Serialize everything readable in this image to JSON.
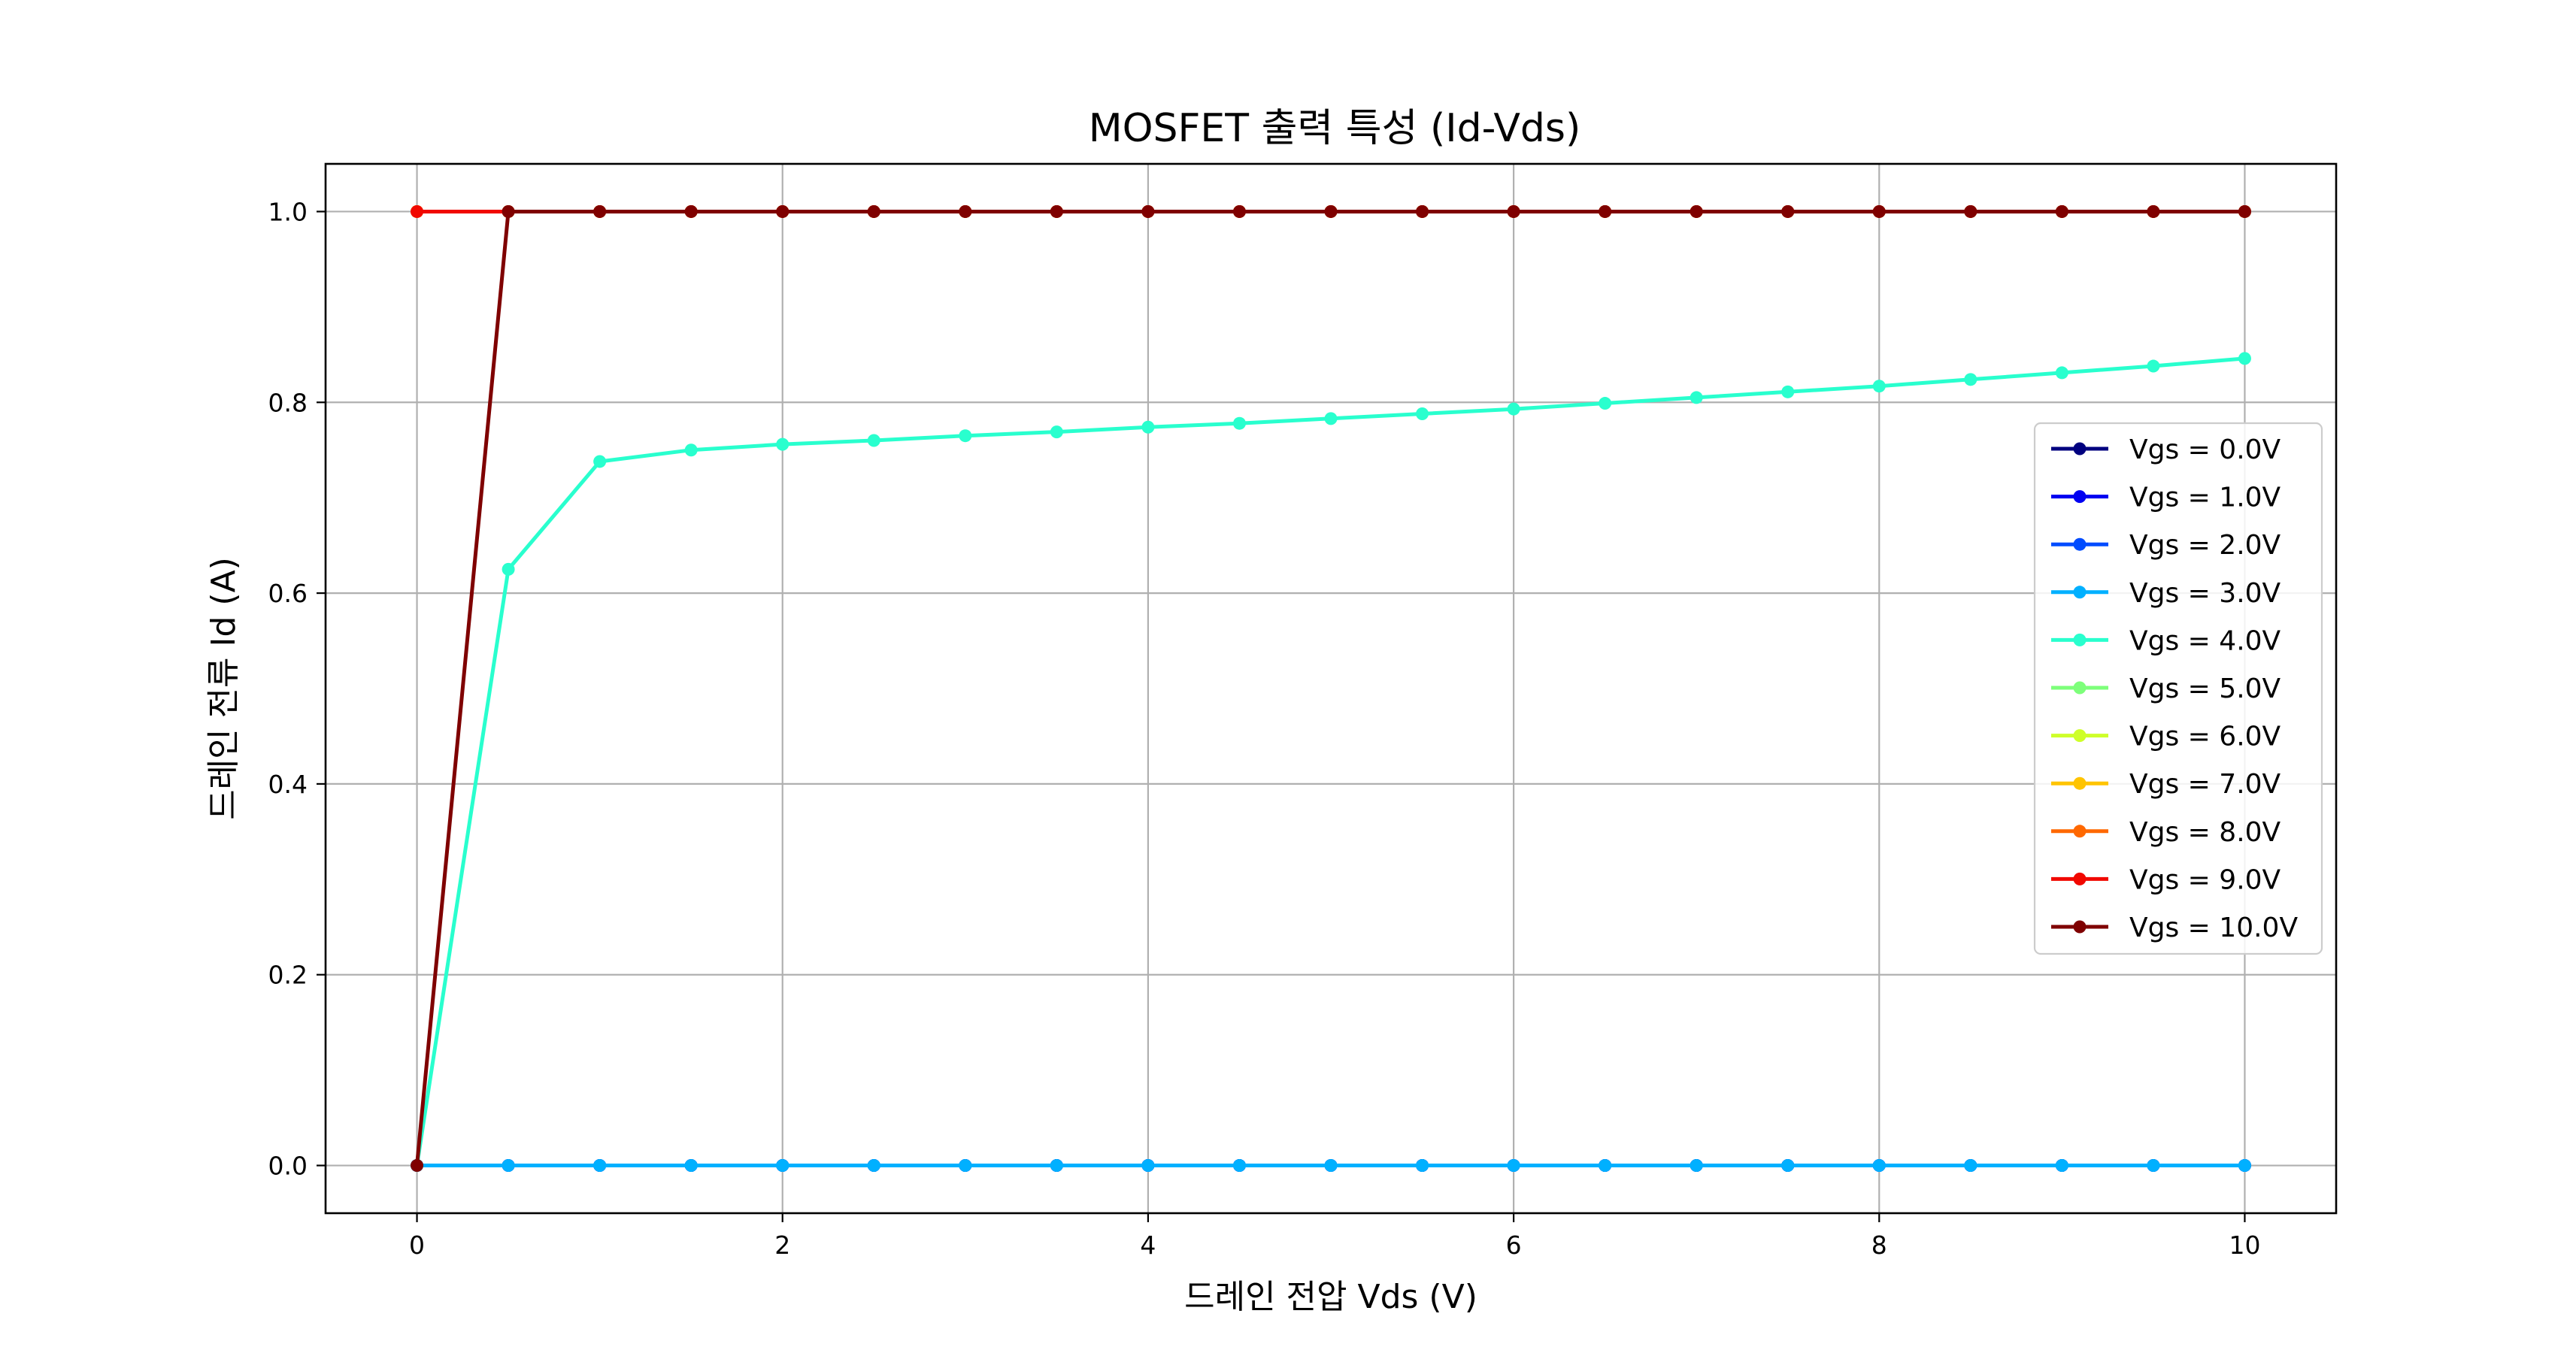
{
  "chart_data": {
    "type": "line",
    "title": "MOSFET 출력 특성 (Id-Vds)",
    "xlabel": "드레인 전압 Vds (V)",
    "ylabel": "드레인 전류 Id (A)",
    "xlim": [
      -0.5,
      10.5
    ],
    "ylim": [
      -0.05,
      1.05
    ],
    "xticks": [
      0,
      2,
      4,
      6,
      8,
      10
    ],
    "xtick_labels": [
      "0",
      "2",
      "4",
      "6",
      "8",
      "10"
    ],
    "yticks": [
      0.0,
      0.2,
      0.4,
      0.6,
      0.8,
      1.0
    ],
    "ytick_labels": [
      "0.0",
      "0.2",
      "0.4",
      "0.6",
      "0.8",
      "1.0"
    ],
    "grid": true,
    "legend_position": "right",
    "x": [
      0,
      0.5,
      1,
      1.5,
      2,
      2.5,
      3,
      3.5,
      4,
      4.5,
      5,
      5.5,
      6,
      6.5,
      7,
      7.5,
      8,
      8.5,
      9,
      9.5,
      10
    ],
    "series": [
      {
        "name": "Vgs = 0.0V",
        "color": "#00007f",
        "values": [
          0,
          0,
          0,
          0,
          0,
          0,
          0,
          0,
          0,
          0,
          0,
          0,
          0,
          0,
          0,
          0,
          0,
          0,
          0,
          0,
          0
        ]
      },
      {
        "name": "Vgs = 1.0V",
        "color": "#0000f1",
        "values": [
          0,
          0,
          0,
          0,
          0,
          0,
          0,
          0,
          0,
          0,
          0,
          0,
          0,
          0,
          0,
          0,
          0,
          0,
          0,
          0,
          0
        ]
      },
      {
        "name": "Vgs = 2.0V",
        "color": "#004cff",
        "values": [
          0,
          0,
          0,
          0,
          0,
          0,
          0,
          0,
          0,
          0,
          0,
          0,
          0,
          0,
          0,
          0,
          0,
          0,
          0,
          0,
          0
        ]
      },
      {
        "name": "Vgs = 3.0V",
        "color": "#00b0ff",
        "values": [
          0,
          0,
          0,
          0,
          0,
          0,
          0,
          0,
          0,
          0,
          0,
          0,
          0,
          0,
          0,
          0,
          0,
          0,
          0,
          0,
          0
        ]
      },
      {
        "name": "Vgs = 4.0V",
        "color": "#29ffce",
        "values": [
          0,
          0.625,
          0.738,
          0.75,
          0.756,
          0.76,
          0.765,
          0.769,
          0.774,
          0.778,
          0.783,
          0.788,
          0.793,
          0.799,
          0.805,
          0.811,
          0.817,
          0.824,
          0.831,
          0.838,
          0.846
        ]
      },
      {
        "name": "Vgs = 5.0V",
        "color": "#7dff7a",
        "values": [
          1,
          1,
          1,
          1,
          1,
          1,
          1,
          1,
          1,
          1,
          1,
          1,
          1,
          1,
          1,
          1,
          1,
          1,
          1,
          1,
          1
        ]
      },
      {
        "name": "Vgs = 6.0V",
        "color": "#ceff29",
        "values": [
          1,
          1,
          1,
          1,
          1,
          1,
          1,
          1,
          1,
          1,
          1,
          1,
          1,
          1,
          1,
          1,
          1,
          1,
          1,
          1,
          1
        ]
      },
      {
        "name": "Vgs = 7.0V",
        "color": "#ffc400",
        "values": [
          1,
          1,
          1,
          1,
          1,
          1,
          1,
          1,
          1,
          1,
          1,
          1,
          1,
          1,
          1,
          1,
          1,
          1,
          1,
          1,
          1
        ]
      },
      {
        "name": "Vgs = 8.0V",
        "color": "#ff6800",
        "values": [
          1,
          1,
          1,
          1,
          1,
          1,
          1,
          1,
          1,
          1,
          1,
          1,
          1,
          1,
          1,
          1,
          1,
          1,
          1,
          1,
          1
        ]
      },
      {
        "name": "Vgs = 9.0V",
        "color": "#f10800",
        "values": [
          1,
          1,
          1,
          1,
          1,
          1,
          1,
          1,
          1,
          1,
          1,
          1,
          1,
          1,
          1,
          1,
          1,
          1,
          1,
          1,
          1
        ]
      },
      {
        "name": "Vgs = 10.0V",
        "color": "#7f0000",
        "values": [
          0,
          1,
          1,
          1,
          1,
          1,
          1,
          1,
          1,
          1,
          1,
          1,
          1,
          1,
          1,
          1,
          1,
          1,
          1,
          1,
          1
        ]
      }
    ]
  }
}
